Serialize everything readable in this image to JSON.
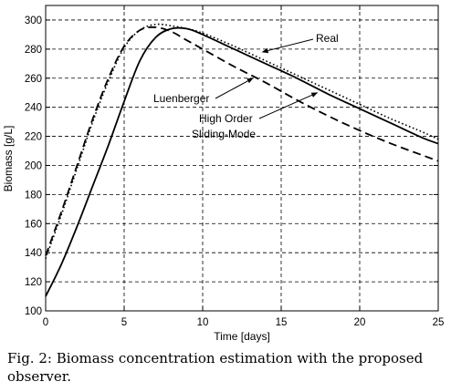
{
  "caption": "Fig. 2: Biomass concentration estimation with the proposed observer.",
  "chart_data": {
    "type": "line",
    "xlabel": "Time [days]",
    "ylabel": "Biomass [g/L]",
    "xlim": [
      0,
      25
    ],
    "ylim": [
      100,
      310
    ],
    "xticks": [
      0,
      5,
      10,
      15,
      20,
      25
    ],
    "yticks": [
      100,
      120,
      140,
      160,
      180,
      200,
      220,
      240,
      260,
      280,
      300
    ],
    "grid": true,
    "series": [
      {
        "name": "Real",
        "style": "solid",
        "x": [
          0,
          1,
          2,
          3,
          4,
          5,
          6,
          7,
          8,
          9,
          10,
          12,
          14,
          16,
          18,
          20,
          22,
          24,
          25
        ],
        "y": [
          110,
          132,
          158,
          186,
          214,
          244,
          272,
          288,
          294,
          294,
          290,
          280,
          270,
          260,
          249,
          239,
          229,
          219,
          215
        ]
      },
      {
        "name": "Luenberger",
        "style": "dashed",
        "x": [
          0,
          1,
          2,
          3,
          4,
          5,
          6,
          7,
          8,
          9,
          10,
          12,
          14,
          16,
          18,
          20,
          22,
          24,
          25
        ],
        "y": [
          138,
          168,
          200,
          232,
          260,
          282,
          293,
          295,
          292,
          286,
          280,
          268,
          257,
          245,
          234,
          224,
          215,
          207,
          203
        ]
      },
      {
        "name": "High Order Sliding-Mode",
        "style": "dotted",
        "x": [
          0,
          1,
          2,
          3,
          4,
          5,
          6,
          7,
          8,
          9,
          10,
          12,
          14,
          16,
          18,
          20,
          22,
          24,
          25
        ],
        "y": [
          136,
          166,
          198,
          230,
          258,
          281,
          293,
          297,
          296,
          294,
          291,
          282,
          272,
          262,
          252,
          242,
          232,
          223,
          218
        ]
      }
    ],
    "annotations": [
      {
        "text": "Real",
        "series": "Real",
        "x": 13.8,
        "y": 278
      },
      {
        "text": "Luenberger",
        "series": "Luenberger",
        "x": 13.2,
        "y": 260
      },
      {
        "text": "High Order",
        "series": "High Order Sliding-Mode",
        "x": 17.3,
        "y": 250
      },
      {
        "text": "Sliding-Mode",
        "series": "High Order Sliding-Mode",
        "x": 17.3,
        "y": 250
      }
    ]
  }
}
